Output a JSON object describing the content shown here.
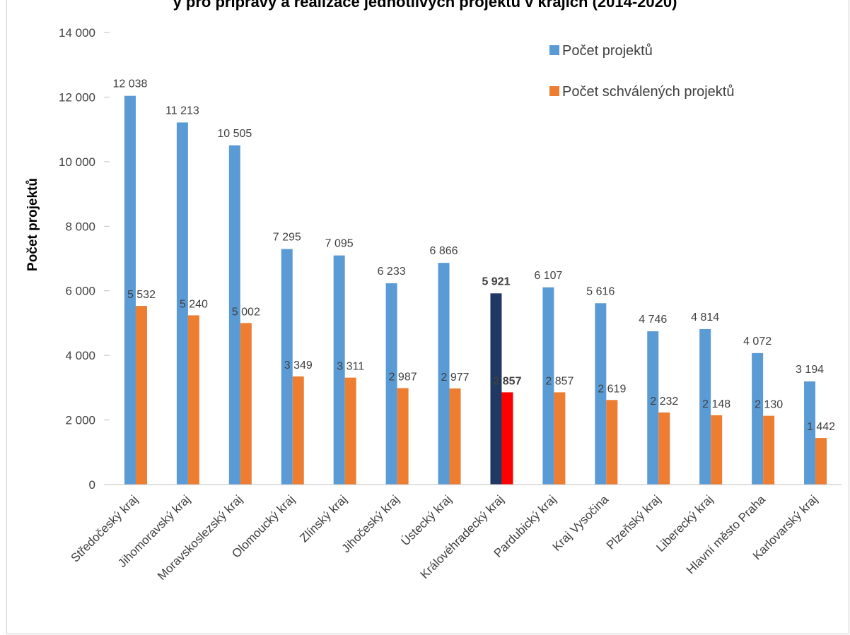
{
  "chart_data": {
    "type": "bar",
    "title": "y pro přípravy a realizace jednotlivých projektů v krajích (2014-2020)",
    "ylabel": "Počet projektů",
    "xlabel": "",
    "ylim": [
      0,
      14000
    ],
    "yticks": [
      0,
      2000,
      4000,
      6000,
      8000,
      10000,
      12000,
      14000
    ],
    "ytick_labels": [
      "0",
      "2 000",
      "4 000",
      "6 000",
      "8 000",
      "10 000",
      "12 000",
      "14 000"
    ],
    "grid": false,
    "legend_position": "top-right",
    "categories": [
      "Středočeský kraj",
      "Jihomoravský kraj",
      "Moravskoslezský kraj",
      "Olomoucký kraj",
      "Zlínský kraj",
      "Jihočeský kraj",
      "Ústecký kraj",
      "Královéhradecký kraj",
      "Pardubický kraj",
      "Kraj Vysočina",
      "Plzeňský kraj",
      "Liberecký kraj",
      "Hlavní město Praha",
      "Karlovarský kraj"
    ],
    "series": [
      {
        "name": "Počet projektů",
        "color": "#5b9bd5",
        "values": [
          12038,
          11213,
          10505,
          7295,
          7095,
          6233,
          6866,
          5921,
          6107,
          5616,
          4746,
          4814,
          4072,
          3194
        ],
        "labels": [
          "12 038",
          "11 213",
          "10 505",
          "7 295",
          "7 095",
          "6 233",
          "6 866",
          "5 921",
          "6 107",
          "5 616",
          "4 746",
          "4 814",
          "4 072",
          "3 194"
        ]
      },
      {
        "name": "Počet schválených projektů",
        "color": "#ed7d31",
        "values": [
          5532,
          5240,
          5002,
          3349,
          3311,
          2987,
          2977,
          2857,
          2857,
          2619,
          2232,
          2148,
          2130,
          1442
        ],
        "labels": [
          "5 532",
          "5 240",
          "5 002",
          "3 349",
          "3 311",
          "2 987",
          "2 977",
          "2 857",
          "2 857",
          "2 619",
          "2 232",
          "2 148",
          "2 130",
          "1 442"
        ]
      }
    ],
    "highlight": {
      "category": "Královéhradecký kraj",
      "colors": [
        "#203864",
        "#ff0000"
      ],
      "bold_labels": true
    }
  }
}
